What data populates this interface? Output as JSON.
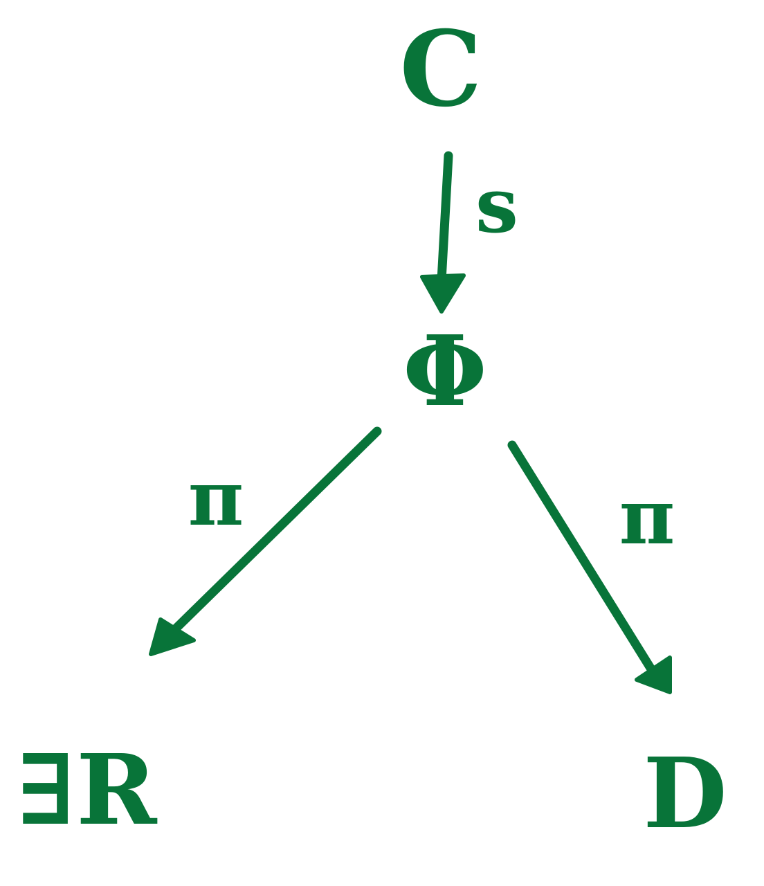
{
  "diagram": {
    "ink_color": "#087439",
    "background_color": "#ffffff",
    "nodes": {
      "c": "C",
      "phi": "Φ",
      "er": "∃R",
      "d": "D"
    },
    "edges": {
      "s": "s",
      "pi_left": "π",
      "pi_right": "π"
    }
  }
}
